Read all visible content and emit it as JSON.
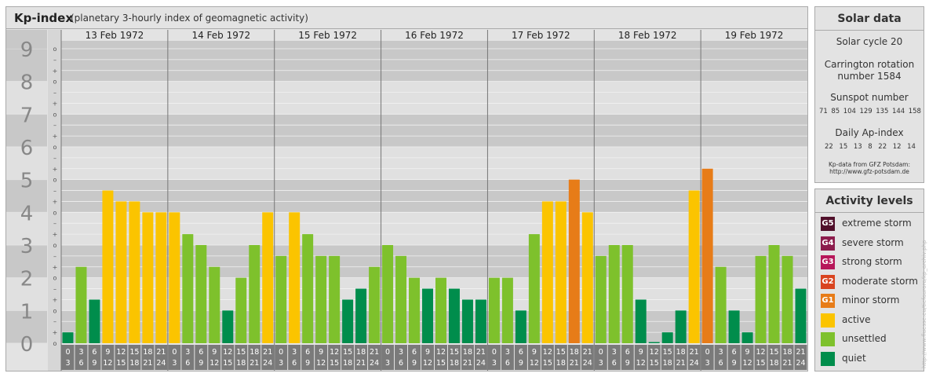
{
  "header": {
    "title": "Kp-index",
    "subtitle": "(planetary 3-hourly index of geomagnetic activity)"
  },
  "chart_data": {
    "type": "bar",
    "y_major_labels": [
      "0",
      "1",
      "2",
      "3",
      "4",
      "5",
      "6",
      "7",
      "8",
      "9"
    ],
    "y_minor_labels": [
      "+",
      "o",
      "–"
    ],
    "ylim": [
      0,
      9
    ],
    "days": [
      "13 Feb 1972",
      "14 Feb 1972",
      "15 Feb 1972",
      "16 Feb 1972",
      "17 Feb 1972",
      "18 Feb 1972",
      "19 Feb 1972"
    ],
    "interval_start_labels": [
      "0",
      "3",
      "6",
      "9",
      "12",
      "15",
      "18",
      "21"
    ],
    "interval_end_labels": [
      "3",
      "6",
      "9",
      "12",
      "15",
      "18",
      "21",
      "24"
    ],
    "values": [
      0.333,
      2.333,
      1.333,
      4.667,
      4.333,
      4.333,
      4.0,
      4.0,
      4.0,
      3.333,
      3.0,
      2.333,
      1.0,
      2.0,
      3.0,
      4.0,
      2.667,
      4.0,
      3.333,
      2.667,
      2.667,
      1.333,
      1.667,
      2.333,
      3.0,
      2.667,
      2.0,
      1.667,
      2.0,
      1.667,
      1.333,
      1.333,
      2.0,
      2.0,
      1.0,
      3.333,
      4.333,
      4.333,
      5.0,
      4.0,
      2.667,
      3.0,
      3.0,
      1.333,
      0.0,
      0.333,
      1.0,
      4.667,
      5.333,
      2.333,
      1.0,
      0.333,
      2.667,
      3.0,
      2.667,
      1.667
    ],
    "colors": {
      "quiet": "#008d4c",
      "unsettled": "#7ec12c",
      "active": "#fbc400",
      "minor_storm": "#e77c18",
      "moderate_storm": "#d9441f",
      "strong_storm": "#b7175a",
      "severe_storm": "#8c1c4c",
      "extreme_storm": "#500f2a"
    },
    "grid": true,
    "legend": "right"
  },
  "solar": {
    "title": "Solar data",
    "cycle": "Solar cycle 20",
    "carrington": "Carrington rotation",
    "carrington_number": "number 1584",
    "sunspot_title": "Sunspot number",
    "sunspot_values": [
      "71",
      "85",
      "104",
      "129",
      "135",
      "144",
      "158"
    ],
    "ap_title": "Daily Ap-index",
    "ap_values": [
      "22",
      "15",
      "13",
      "8",
      "22",
      "12",
      "14"
    ],
    "source_line1": "Kp-data from GFZ Potsdam:",
    "source_line2": "http://www.gfz-potsdam.de"
  },
  "levels": {
    "title": "Activity levels",
    "items": [
      {
        "code": "G5",
        "label": "extreme storm",
        "color": "#500f2a"
      },
      {
        "code": "G4",
        "label": "severe storm",
        "color": "#8c1c4c"
      },
      {
        "code": "G3",
        "label": "strong storm",
        "color": "#b7175a"
      },
      {
        "code": "G2",
        "label": "moderate storm",
        "color": "#d9441f"
      },
      {
        "code": "G1",
        "label": "minor storm",
        "color": "#e77c18"
      },
      {
        "code": "",
        "label": "active",
        "color": "#fbc400"
      },
      {
        "code": "",
        "label": "unsettled",
        "color": "#7ec12c"
      },
      {
        "code": "",
        "label": "quiet",
        "color": "#008d4c"
      }
    ]
  },
  "side_url": "http://www.fluesse.eu/tiefaurora/kp_archiv.php"
}
